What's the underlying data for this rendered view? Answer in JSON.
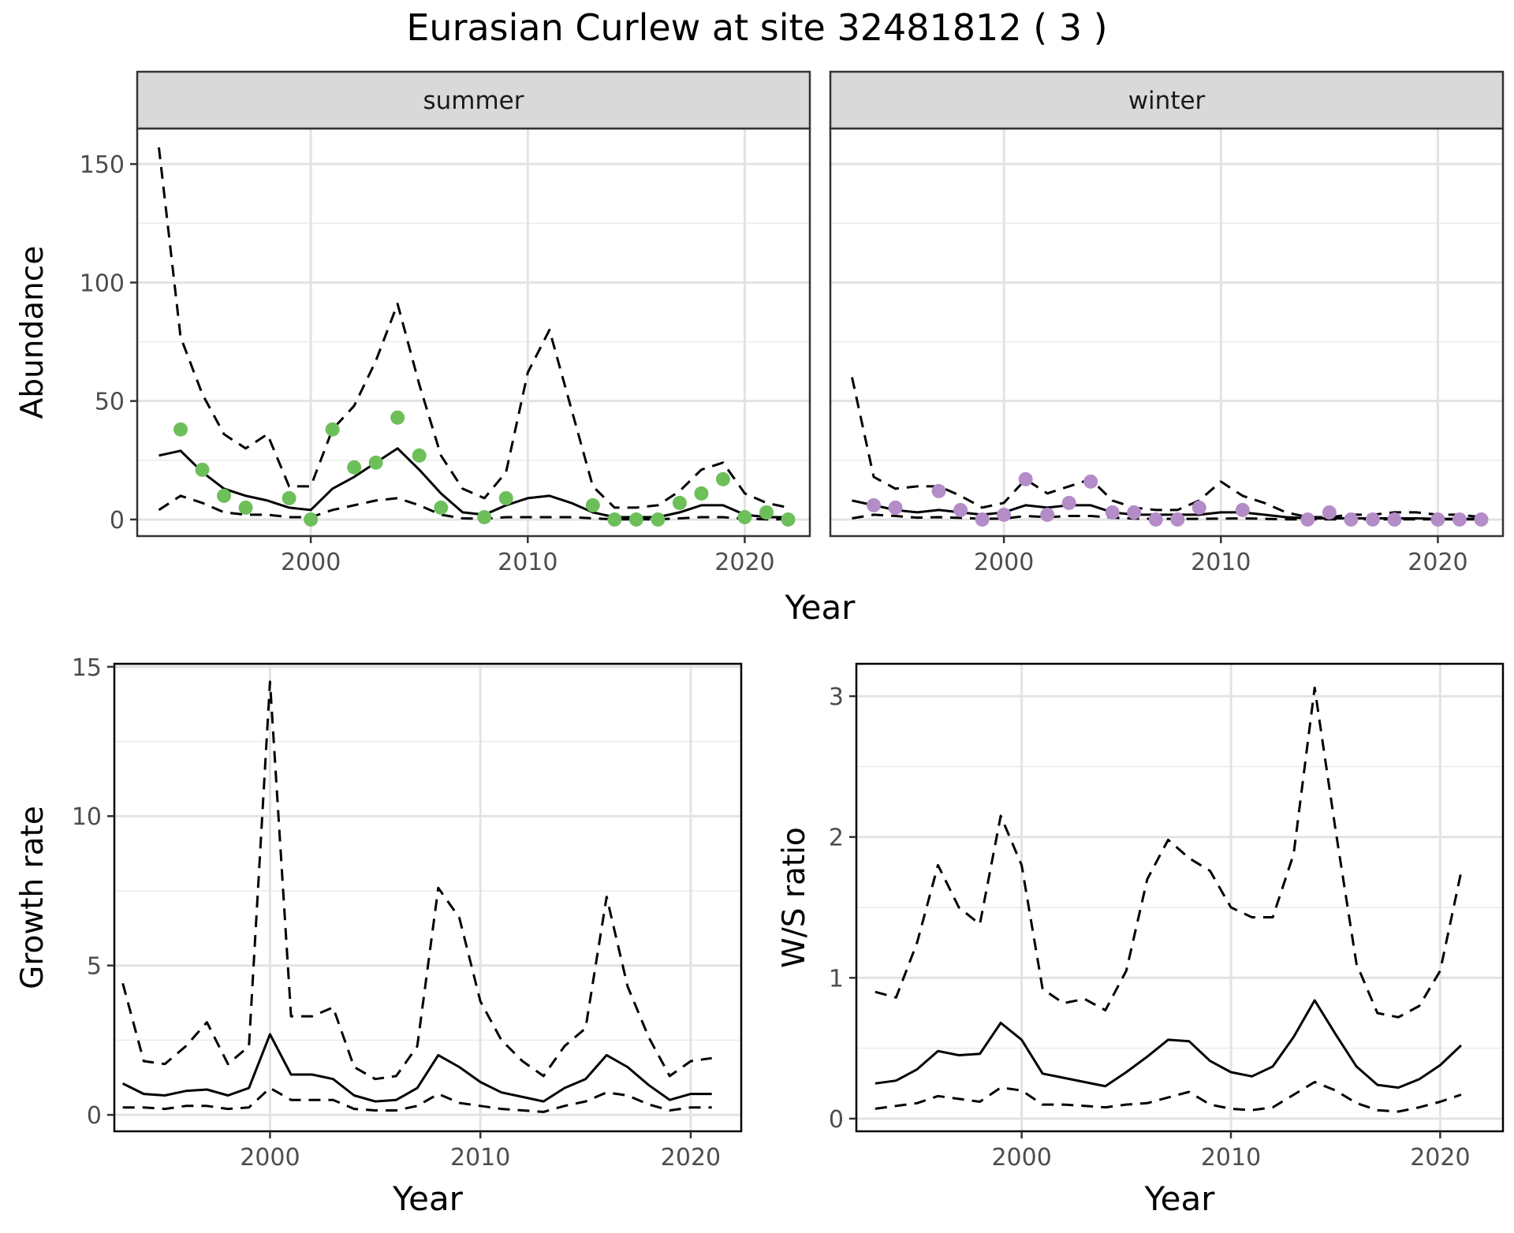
{
  "figure": {
    "title": "Eurasian Curlew at site 32481812 ( 3 )"
  },
  "chart_data": [
    {
      "type": "line",
      "title": "",
      "facet_label": "summer",
      "xlabel": "Year",
      "ylabel": "Abundance",
      "xlim": [
        1992,
        2023
      ],
      "ylim": [
        -7,
        165
      ],
      "xticks": [
        2000,
        2010,
        2020
      ],
      "yticks": [
        0,
        50,
        100,
        150
      ],
      "grid": true,
      "point_color": "#6dbf5a",
      "x": [
        1993,
        1994,
        1995,
        1996,
        1997,
        1998,
        1999,
        2000,
        2001,
        2002,
        2003,
        2004,
        2005,
        2006,
        2007,
        2008,
        2009,
        2010,
        2011,
        2012,
        2013,
        2014,
        2015,
        2016,
        2017,
        2018,
        2019,
        2020,
        2021,
        2022
      ],
      "series": [
        {
          "role": "estimate",
          "style": "solid",
          "values": [
            27,
            29,
            20,
            13,
            10,
            8,
            5,
            4,
            13,
            18,
            24,
            30,
            21,
            11,
            3,
            2,
            6,
            9,
            10,
            7,
            3,
            1,
            1,
            1,
            3,
            6,
            6,
            2,
            1,
            1
          ]
        },
        {
          "role": "upper",
          "style": "dashed",
          "values": [
            157,
            77,
            53,
            36,
            30,
            36,
            14,
            14,
            38,
            48,
            67,
            91,
            57,
            27,
            13,
            9,
            20,
            62,
            80,
            47,
            14,
            5,
            5,
            6,
            12,
            21,
            24,
            11,
            7,
            5
          ]
        },
        {
          "role": "lower",
          "style": "dashed",
          "values": [
            4,
            10,
            7,
            3,
            2,
            2,
            1,
            1,
            4,
            6,
            8,
            9,
            6,
            2,
            0.5,
            0.3,
            1,
            1,
            1,
            1,
            0.5,
            0.1,
            0.1,
            0.1,
            0.5,
            1,
            1,
            0.3,
            0.1,
            0.1
          ]
        }
      ],
      "points": {
        "x": [
          1994,
          1995,
          1996,
          1997,
          1999,
          2000,
          2001,
          2002,
          2003,
          2004,
          2005,
          2006,
          2008,
          2009,
          2013,
          2014,
          2015,
          2016,
          2017,
          2018,
          2019,
          2020,
          2021,
          2022
        ],
        "y": [
          38,
          21,
          10,
          5,
          9,
          0,
          38,
          22,
          24,
          43,
          27,
          5,
          1,
          9,
          6,
          0,
          0,
          0,
          7,
          11,
          17,
          1,
          3,
          0
        ]
      }
    },
    {
      "type": "line",
      "title": "",
      "facet_label": "winter",
      "xlabel": "Year",
      "ylabel": "",
      "xlim": [
        1992,
        2023
      ],
      "ylim": [
        -7,
        165
      ],
      "xticks": [
        2000,
        2010,
        2020
      ],
      "yticks": [
        0,
        50,
        100,
        150
      ],
      "grid": true,
      "point_color": "#b48cc8",
      "x": [
        1993,
        1994,
        1995,
        1996,
        1997,
        1998,
        1999,
        2000,
        2001,
        2002,
        2003,
        2004,
        2005,
        2006,
        2007,
        2008,
        2009,
        2010,
        2011,
        2012,
        2013,
        2014,
        2015,
        2016,
        2017,
        2018,
        2019,
        2020,
        2021,
        2022
      ],
      "series": [
        {
          "role": "estimate",
          "style": "solid",
          "values": [
            8,
            6,
            4,
            3,
            4,
            3,
            2,
            3,
            6,
            5,
            6,
            6,
            3,
            2,
            2,
            2,
            2,
            3,
            3,
            2,
            1,
            0.5,
            0.5,
            0.5,
            0.5,
            0.5,
            0.5,
            0.3,
            0.3,
            0.3
          ]
        },
        {
          "role": "upper",
          "style": "dashed",
          "values": [
            60,
            18,
            13,
            14,
            14,
            10,
            5,
            7,
            17,
            11,
            14,
            17,
            8,
            5,
            4,
            4,
            8,
            16,
            10,
            7,
            3,
            1,
            1,
            2,
            2,
            3,
            3,
            2,
            2,
            1
          ]
        },
        {
          "role": "lower",
          "style": "dashed",
          "values": [
            0.5,
            2,
            1.5,
            0.8,
            1,
            0.7,
            0.3,
            0.4,
            1.5,
            1,
            1.5,
            1.5,
            0.8,
            0.4,
            0.3,
            0.3,
            0.3,
            0.4,
            0.5,
            0.3,
            0.1,
            0.05,
            0.05,
            0.05,
            0.05,
            0.05,
            0.05,
            0.05,
            0.05,
            0.05
          ]
        }
      ],
      "points": {
        "x": [
          1994,
          1995,
          1997,
          1998,
          1999,
          2000,
          2001,
          2002,
          2003,
          2004,
          2005,
          2006,
          2007,
          2008,
          2009,
          2011,
          2014,
          2015,
          2016,
          2017,
          2018,
          2020,
          2021,
          2022
        ],
        "y": [
          6,
          5,
          12,
          4,
          0,
          2,
          17,
          2,
          7,
          16,
          3,
          3,
          0,
          0,
          5,
          4,
          0,
          3,
          0,
          0,
          0,
          0,
          0,
          0
        ]
      }
    },
    {
      "type": "line",
      "title": "",
      "xlabel": "Year",
      "ylabel": "Growth rate",
      "xlim": [
        1992.6,
        2022.4
      ],
      "ylim": [
        -0.55,
        15.1
      ],
      "xticks": [
        2000,
        2010,
        2020
      ],
      "yticks": [
        0,
        5,
        10,
        15
      ],
      "grid": true,
      "x": [
        1993,
        1994,
        1995,
        1996,
        1997,
        1998,
        1999,
        2000,
        2001,
        2002,
        2003,
        2004,
        2005,
        2006,
        2007,
        2008,
        2009,
        2010,
        2011,
        2012,
        2013,
        2014,
        2015,
        2016,
        2017,
        2018,
        2019,
        2020,
        2021
      ],
      "series": [
        {
          "role": "estimate",
          "style": "solid",
          "values": [
            1.05,
            0.7,
            0.65,
            0.8,
            0.85,
            0.65,
            0.9,
            2.7,
            1.35,
            1.35,
            1.2,
            0.65,
            0.45,
            0.5,
            0.9,
            2.0,
            1.6,
            1.1,
            0.75,
            0.6,
            0.45,
            0.9,
            1.2,
            2.0,
            1.6,
            1.0,
            0.5,
            0.7,
            0.7
          ]
        },
        {
          "role": "upper",
          "style": "dashed",
          "values": [
            4.4,
            1.8,
            1.7,
            2.3,
            3.1,
            1.7,
            2.3,
            14.5,
            3.3,
            3.3,
            3.6,
            1.6,
            1.2,
            1.3,
            2.3,
            7.6,
            6.6,
            3.8,
            2.5,
            1.8,
            1.3,
            2.3,
            2.9,
            7.3,
            4.3,
            2.6,
            1.3,
            1.8,
            1.9
          ]
        },
        {
          "role": "lower",
          "style": "dashed",
          "values": [
            0.25,
            0.25,
            0.2,
            0.3,
            0.3,
            0.2,
            0.25,
            0.9,
            0.5,
            0.5,
            0.5,
            0.2,
            0.15,
            0.15,
            0.3,
            0.7,
            0.4,
            0.3,
            0.2,
            0.15,
            0.1,
            0.3,
            0.45,
            0.75,
            0.65,
            0.35,
            0.15,
            0.25,
            0.25
          ]
        }
      ]
    },
    {
      "type": "line",
      "title": "",
      "xlabel": "Year",
      "ylabel": "W/S ratio",
      "xlim": [
        1992.1,
        2023.0
      ],
      "ylim": [
        -0.09,
        3.23
      ],
      "xticks": [
        2000,
        2010,
        2020
      ],
      "yticks": [
        0,
        1,
        2,
        3
      ],
      "grid": true,
      "x": [
        1993,
        1994,
        1995,
        1996,
        1997,
        1998,
        1999,
        2000,
        2001,
        2002,
        2003,
        2004,
        2005,
        2006,
        2007,
        2008,
        2009,
        2010,
        2011,
        2012,
        2013,
        2014,
        2015,
        2016,
        2017,
        2018,
        2019,
        2020,
        2021
      ],
      "series": [
        {
          "role": "estimate",
          "style": "solid",
          "values": [
            0.25,
            0.27,
            0.35,
            0.48,
            0.45,
            0.46,
            0.68,
            0.56,
            0.32,
            0.29,
            0.26,
            0.23,
            0.33,
            0.44,
            0.56,
            0.55,
            0.41,
            0.33,
            0.3,
            0.37,
            0.58,
            0.84,
            0.6,
            0.37,
            0.24,
            0.22,
            0.28,
            0.38,
            0.52
          ]
        },
        {
          "role": "upper",
          "style": "dashed",
          "values": [
            0.9,
            0.86,
            1.25,
            1.8,
            1.5,
            1.38,
            2.15,
            1.8,
            0.92,
            0.82,
            0.85,
            0.77,
            1.05,
            1.7,
            1.98,
            1.85,
            1.76,
            1.5,
            1.43,
            1.43,
            1.88,
            3.06,
            2.05,
            1.1,
            0.75,
            0.72,
            0.8,
            1.05,
            1.75
          ]
        },
        {
          "role": "lower",
          "style": "dashed",
          "values": [
            0.07,
            0.09,
            0.11,
            0.16,
            0.14,
            0.12,
            0.22,
            0.2,
            0.1,
            0.1,
            0.09,
            0.08,
            0.1,
            0.11,
            0.15,
            0.19,
            0.1,
            0.07,
            0.06,
            0.08,
            0.17,
            0.26,
            0.2,
            0.11,
            0.06,
            0.05,
            0.08,
            0.12,
            0.17
          ]
        }
      ]
    }
  ]
}
